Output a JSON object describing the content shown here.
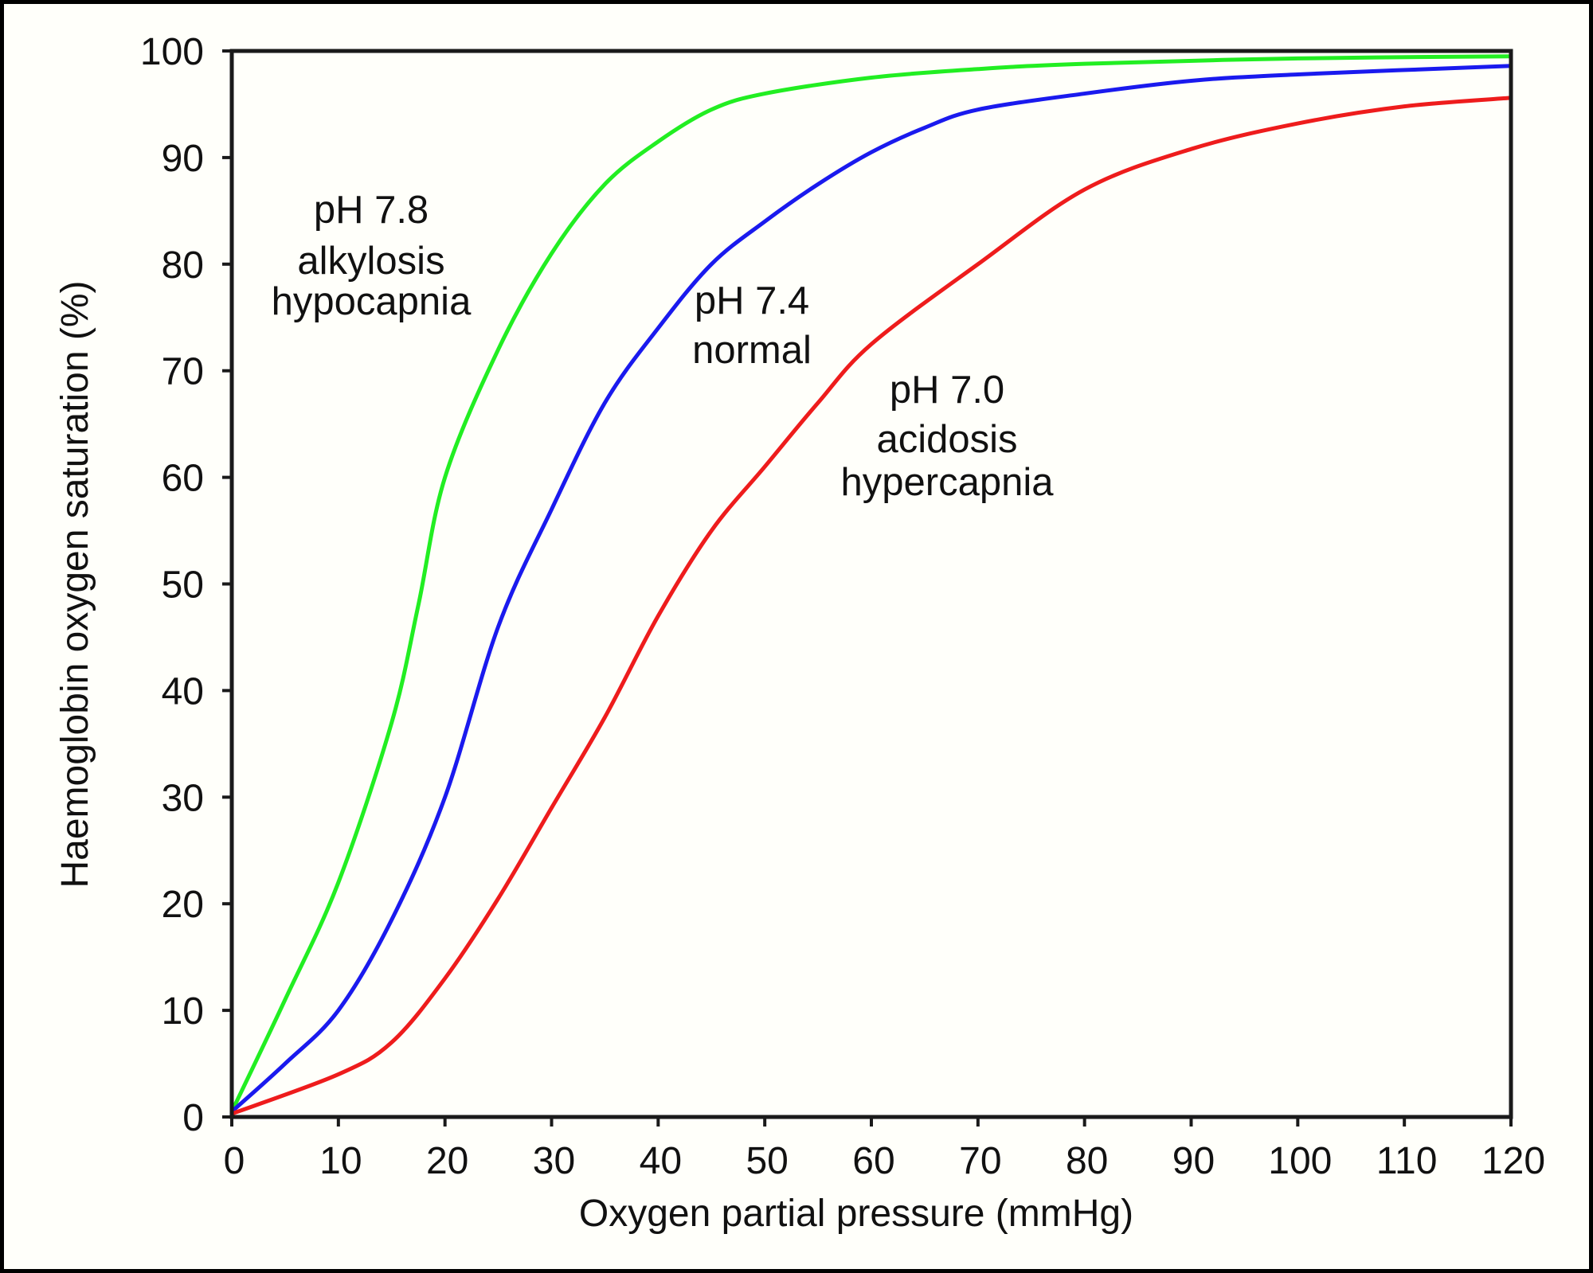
{
  "chart_data": {
    "type": "line",
    "xlabel": "Oxygen partial pressure (mmHg)",
    "ylabel": "Haemoglobin oxygen saturation (%)",
    "xlim": [
      0,
      120
    ],
    "ylim": [
      0,
      100
    ],
    "xticks": [
      "0",
      "10",
      "20",
      "30",
      "40",
      "50",
      "60",
      "70",
      "80",
      "90",
      "100",
      "110",
      "120"
    ],
    "yticks": [
      "0",
      "10",
      "20",
      "30",
      "40",
      "50",
      "60",
      "70",
      "80",
      "90",
      "100"
    ],
    "grid": false,
    "series": [
      {
        "name": "pH 7.8 alkylosis hypocapnia",
        "color": "#22ee22",
        "labels": [
          "pH 7.8",
          "alkylosis",
          "hypocapnia"
        ],
        "x": [
          0,
          5,
          10,
          15,
          17.5,
          20,
          25,
          30,
          35,
          40,
          45,
          50,
          60,
          70,
          80,
          100,
          120
        ],
        "y": [
          0.5,
          11,
          22,
          37,
          48,
          60,
          72,
          81,
          87.5,
          91.5,
          94.5,
          96,
          97.5,
          98.3,
          98.8,
          99.3,
          99.5
        ]
      },
      {
        "name": "pH 7.4 normal",
        "color": "#1a1aee",
        "labels": [
          "pH 7.4",
          "normal"
        ],
        "x": [
          0,
          5,
          10,
          15,
          20,
          25,
          30,
          35,
          40,
          45,
          50,
          55,
          60,
          65,
          70,
          80,
          90,
          100,
          120
        ],
        "y": [
          0.5,
          5,
          10,
          18.5,
          30,
          46,
          57,
          67,
          74,
          80,
          84,
          87.5,
          90.5,
          92.8,
          94.5,
          96,
          97.2,
          97.8,
          98.6
        ]
      },
      {
        "name": "pH 7.0 acidosis hypercapnia",
        "color": "#ee1c1c",
        "labels": [
          "pH 7.0",
          "acidosis",
          "hypercapnia"
        ],
        "x": [
          0,
          10,
          15,
          20,
          25,
          30,
          35,
          40,
          45,
          50,
          55,
          60,
          70,
          80,
          90,
          100,
          110,
          120
        ],
        "y": [
          0.3,
          4,
          7,
          13,
          20.5,
          29,
          37.5,
          47,
          55,
          61,
          67,
          72.5,
          80,
          87,
          90.8,
          93.2,
          94.8,
          95.6
        ]
      }
    ]
  }
}
